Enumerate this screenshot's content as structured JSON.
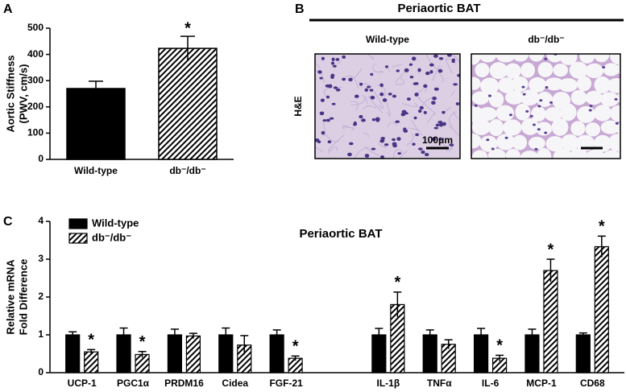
{
  "chart_data": [
    {
      "type": "bar",
      "panel": "A",
      "ylabel": [
        "Aortic Stiffness",
        "(PWV, cm/s)"
      ],
      "categories": [
        "Wild-type",
        "db⁻/db⁻"
      ],
      "values": [
        270,
        423
      ],
      "errors": [
        28,
        46
      ],
      "fills": [
        "solid",
        "hatched"
      ],
      "color": "#000000",
      "annotations": [
        null,
        "*"
      ],
      "ylim": [
        0,
        500
      ],
      "yticks": [
        0,
        100,
        200,
        300,
        400,
        500
      ]
    },
    {
      "type": "grouped_bar",
      "panel": "C",
      "title": "Periaortic BAT",
      "ylabel": [
        "Relative mRNA",
        "Fold Difference"
      ],
      "categories": [
        "UCP-1",
        "PGC1α",
        "PRDM16",
        "Cidea",
        "FGF-21",
        null,
        "IL-1β",
        "TNFα",
        "IL-6",
        "MCP-1",
        "CD68"
      ],
      "series": [
        {
          "name": "Wild-type",
          "color": "#000000",
          "fill": "solid",
          "values": [
            1,
            1,
            1,
            1,
            1,
            null,
            1,
            1,
            1,
            1,
            1
          ],
          "errors": [
            0.08,
            0.18,
            0.15,
            0.18,
            0.13,
            null,
            0.17,
            0.13,
            0.17,
            0.15,
            0.05
          ],
          "annotations": [
            null,
            null,
            null,
            null,
            null,
            null,
            null,
            null,
            null,
            null,
            null
          ]
        },
        {
          "name": "db⁻/db⁻",
          "color": "#000000",
          "fill": "hatched",
          "values": [
            0.55,
            0.48,
            0.97,
            0.73,
            0.38,
            null,
            1.8,
            0.75,
            0.38,
            2.7,
            3.33
          ],
          "errors": [
            0.06,
            0.08,
            0.07,
            0.25,
            0.06,
            null,
            0.33,
            0.12,
            0.08,
            0.3,
            0.28
          ],
          "annotations": [
            "*",
            "*",
            null,
            null,
            "*",
            null,
            "*",
            null,
            "*",
            "*",
            "*"
          ]
        }
      ],
      "legend": "upper-left",
      "ylim": [
        0,
        4
      ],
      "yticks": [
        0,
        1,
        2,
        3,
        4
      ]
    }
  ],
  "panel_b": {
    "label": "B",
    "title": "Periaortic BAT",
    "columns": [
      "Wild-type",
      "db⁻/db⁻"
    ],
    "row_label": "H&E",
    "scale_label": "100μm"
  }
}
